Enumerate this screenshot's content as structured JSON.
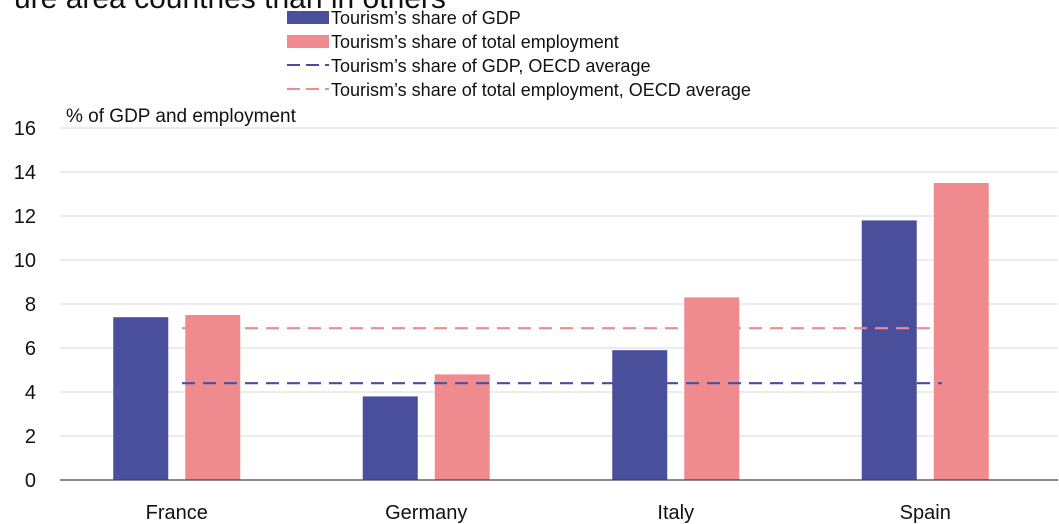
{
  "chart_data": {
    "type": "bar",
    "title_fragment": "ure area countries than in others",
    "ylabel": "% of GDP and employment",
    "ylim": [
      0,
      16
    ],
    "yticks": [
      0,
      2,
      4,
      6,
      8,
      10,
      12,
      14,
      16
    ],
    "grid": true,
    "legend_position": "top-center",
    "categories": [
      "France",
      "Germany",
      "Italy",
      "Spain"
    ],
    "series": [
      {
        "name": "Tourism’s share of GDP",
        "color": "#4a4f9c",
        "values": [
          7.4,
          3.8,
          5.9,
          11.8
        ]
      },
      {
        "name": "Tourism’s share of total employment",
        "color": "#ef8b8f",
        "values": [
          7.5,
          4.8,
          8.3,
          13.5
        ]
      }
    ],
    "reference_lines": [
      {
        "name": "Tourism’s share of GDP, OECD average",
        "color": "#4a4f9c",
        "style": "dashed",
        "value": 4.4
      },
      {
        "name": "Tourism’s share of total employment, OECD average",
        "color": "#ef8b8f",
        "style": "dashed",
        "value": 6.9
      }
    ]
  }
}
